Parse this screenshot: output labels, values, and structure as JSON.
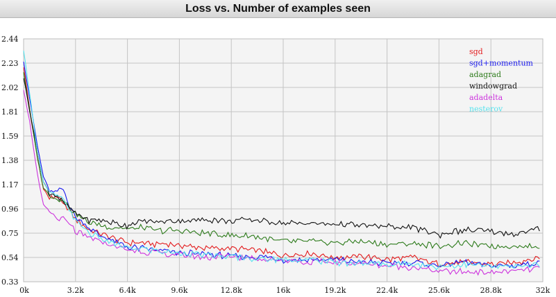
{
  "chart_data": {
    "type": "line",
    "title": "Loss vs. Number of examples seen",
    "xlabel": "",
    "ylabel": "",
    "xlim": [
      0,
      32000
    ],
    "ylim": [
      0.33,
      2.44
    ],
    "x_ticks": [
      "0k",
      "3.2k",
      "6.4k",
      "9.6k",
      "12.8k",
      "16k",
      "19.2k",
      "22.4k",
      "25.6k",
      "28.8k",
      "32k"
    ],
    "y_ticks": [
      "0.33",
      "0.54",
      "0.75",
      "0.96",
      "1.17",
      "1.38",
      "1.59",
      "1.81",
      "2.02",
      "2.23",
      "2.44"
    ],
    "legend_position": "top-right",
    "grid": true,
    "x": [
      0,
      400,
      800,
      1200,
      1600,
      2000,
      2400,
      2800,
      3200,
      4000,
      4800,
      5600,
      6400,
      7200,
      8000,
      9600,
      11200,
      12800,
      14400,
      16000,
      17600,
      19200,
      20800,
      22400,
      24000,
      25600,
      27200,
      28800,
      30400,
      31800
    ],
    "series": [
      {
        "name": "sgd",
        "color": "#e31a1c",
        "values": [
          2.2,
          1.8,
          1.45,
          1.15,
          1.05,
          1.08,
          1.0,
          0.95,
          0.88,
          0.78,
          0.74,
          0.7,
          0.67,
          0.67,
          0.66,
          0.65,
          0.62,
          0.62,
          0.6,
          0.56,
          0.58,
          0.54,
          0.55,
          0.52,
          0.54,
          0.48,
          0.5,
          0.48,
          0.5,
          0.54
        ]
      },
      {
        "name": "sgd+momentum",
        "color": "#1a1aee",
        "values": [
          2.25,
          1.9,
          1.55,
          1.25,
          1.12,
          1.1,
          1.15,
          1.0,
          0.9,
          0.8,
          0.72,
          0.68,
          0.63,
          0.62,
          0.61,
          0.58,
          0.57,
          0.55,
          0.55,
          0.52,
          0.52,
          0.52,
          0.5,
          0.49,
          0.5,
          0.47,
          0.5,
          0.47,
          0.47,
          0.5
        ]
      },
      {
        "name": "adagrad",
        "color": "#2c7a1a",
        "values": [
          2.15,
          1.8,
          1.45,
          1.15,
          1.08,
          1.05,
          1.05,
          0.98,
          0.92,
          0.85,
          0.82,
          0.8,
          0.79,
          0.8,
          0.78,
          0.77,
          0.75,
          0.73,
          0.72,
          0.68,
          0.68,
          0.67,
          0.68,
          0.65,
          0.66,
          0.64,
          0.66,
          0.64,
          0.64,
          0.63
        ]
      },
      {
        "name": "windowgrad",
        "color": "#111111",
        "values": [
          2.1,
          1.8,
          1.5,
          1.2,
          1.1,
          1.08,
          1.02,
          0.97,
          0.92,
          0.87,
          0.86,
          0.84,
          0.82,
          0.85,
          0.85,
          0.86,
          0.87,
          0.86,
          0.87,
          0.84,
          0.84,
          0.83,
          0.82,
          0.81,
          0.8,
          0.74,
          0.78,
          0.76,
          0.74,
          0.79
        ]
      },
      {
        "name": "adadelta",
        "color": "#cc33dd",
        "values": [
          2.0,
          1.7,
          1.3,
          1.0,
          0.94,
          0.88,
          0.87,
          0.84,
          0.76,
          0.71,
          0.68,
          0.64,
          0.6,
          0.6,
          0.58,
          0.56,
          0.54,
          0.55,
          0.53,
          0.52,
          0.5,
          0.5,
          0.49,
          0.47,
          0.46,
          0.42,
          0.42,
          0.41,
          0.42,
          0.45
        ]
      },
      {
        "name": "nesterov",
        "color": "#55e3ee",
        "values": [
          2.33,
          1.95,
          1.5,
          1.2,
          1.1,
          1.08,
          1.05,
          0.96,
          0.86,
          0.76,
          0.7,
          0.66,
          0.62,
          0.62,
          0.6,
          0.58,
          0.56,
          0.55,
          0.53,
          0.52,
          0.52,
          0.5,
          0.49,
          0.48,
          0.49,
          0.46,
          0.48,
          0.46,
          0.46,
          0.48
        ]
      }
    ]
  }
}
